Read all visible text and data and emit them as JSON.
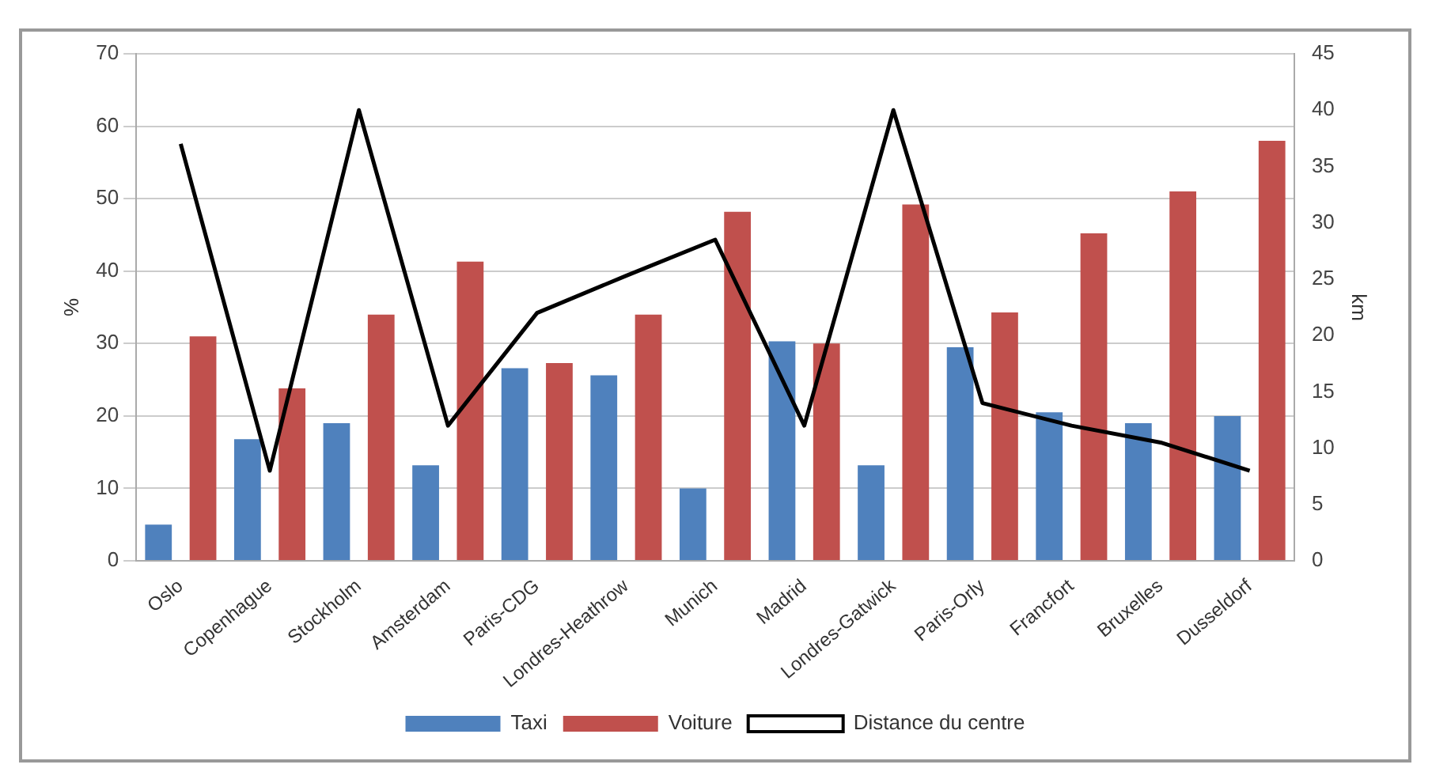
{
  "chart_data": {
    "type": "bar",
    "ylabel": "%",
    "y2label": "km",
    "categories": [
      "Oslo",
      "Copenhague",
      "Stockholm",
      "Amsterdam",
      "Paris-CDG",
      "Londres-Heathrow",
      "Munich",
      "Madrid",
      "Londres-Gatwick",
      "Paris-Orly",
      "Francfort",
      "Bruxelles",
      "Dusseldorf"
    ],
    "series": [
      {
        "name": "Taxi",
        "color": "#4f81bd",
        "values": [
          5,
          16.8,
          19,
          13.2,
          26.6,
          25.6,
          10,
          30.3,
          13.2,
          29.5,
          20.5,
          19,
          20
        ]
      },
      {
        "name": "Voiture",
        "color": "#c0504d",
        "values": [
          31,
          23.8,
          34,
          41.3,
          27.3,
          34,
          48.2,
          30,
          49.2,
          34.3,
          45.2,
          51,
          58
        ]
      },
      {
        "name": "Distance du centre",
        "type": "line",
        "axis": "y2",
        "color": "#000000",
        "values": [
          37,
          8,
          40,
          12,
          22,
          25.3,
          28.5,
          12,
          40,
          14,
          12,
          10.5,
          8
        ]
      }
    ],
    "ylim": [
      0,
      70
    ],
    "yticks": [
      0,
      10,
      20,
      30,
      40,
      50,
      60,
      70
    ],
    "y2lim": [
      0,
      45
    ],
    "y2ticks": [
      0,
      5,
      10,
      15,
      20,
      25,
      30,
      35,
      40,
      45
    ],
    "grid": "y",
    "legend": "bottom",
    "marker": "none"
  }
}
